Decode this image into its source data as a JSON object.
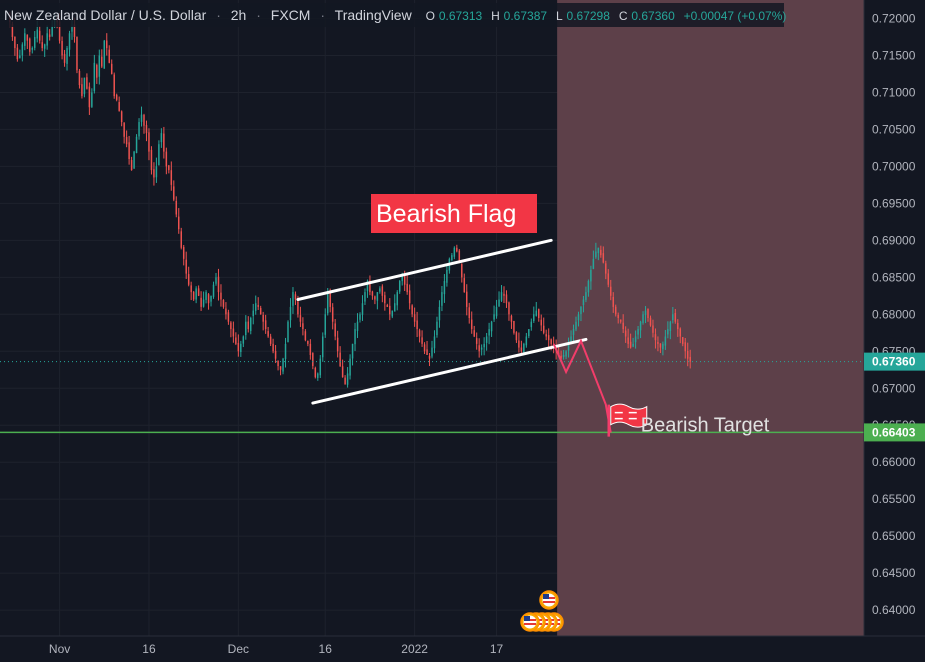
{
  "header": {
    "symbol": "New Zealand Dollar / U.S. Dollar",
    "sep1": "·",
    "interval": "2h",
    "sep2": "·",
    "exchange": "FXCM",
    "sep3": "·",
    "source": "TradingView",
    "o_label": "O",
    "o_value": "0.67313",
    "h_label": "H",
    "h_value": "0.67387",
    "l_label": "L",
    "l_value": "0.67298",
    "c_label": "C",
    "c_value": "0.67360",
    "change": "+0.00047 (+0.07%)"
  },
  "annotations": {
    "flag_label": "Bearish Flag",
    "target_label": "Bearish Target"
  },
  "price_tags": {
    "current": "0.67360",
    "target": "0.66403"
  },
  "colors": {
    "background": "#131722",
    "grid": "#1e222d",
    "up_candle": "#26a69a",
    "down_candle": "#ef5350",
    "target_line": "#4caf50",
    "current_tag": "#26a69a",
    "target_tag": "#4caf50",
    "projection_zone": "#5d4049",
    "flag_box": "#f23645",
    "projection_path": "#f23d6a"
  },
  "chart_data": {
    "type": "candlestick",
    "title": "New Zealand Dollar / U.S. Dollar · 2h · FXCM",
    "ylim": [
      0.6365,
      0.7225
    ],
    "y_ticks": [
      "0.72000",
      "0.71500",
      "0.71000",
      "0.70500",
      "0.70000",
      "0.69500",
      "0.69000",
      "0.68500",
      "0.68000",
      "0.67500",
      "0.67000",
      "0.66500",
      "0.66000",
      "0.65500",
      "0.65000",
      "0.64500",
      "0.64000"
    ],
    "x_ticks": [
      {
        "label": "Nov",
        "index": 20
      },
      {
        "label": "16",
        "index": 56
      },
      {
        "label": "Dec",
        "index": 92
      },
      {
        "label": "16",
        "index": 127
      },
      {
        "label": "2022",
        "index": 163
      },
      {
        "label": "17",
        "index": 196
      }
    ],
    "x_range": [
      -4,
      344
    ],
    "series_close": [
      0.7195,
      0.7175,
      0.716,
      0.7145,
      0.715,
      0.7165,
      0.718,
      0.717,
      0.7155,
      0.716,
      0.7175,
      0.7185,
      0.717,
      0.716,
      0.7165,
      0.718,
      0.7175,
      0.719,
      0.72,
      0.7195,
      0.717,
      0.715,
      0.714,
      0.716,
      0.718,
      0.719,
      0.7175,
      0.713,
      0.711,
      0.7095,
      0.712,
      0.7105,
      0.708,
      0.71,
      0.714,
      0.712,
      0.715,
      0.7135,
      0.717,
      0.716,
      0.714,
      0.7125,
      0.7095,
      0.709,
      0.7075,
      0.706,
      0.704,
      0.703,
      0.701,
      0.6995,
      0.702,
      0.704,
      0.706,
      0.707,
      0.7055,
      0.7045,
      0.702,
      0.6995,
      0.6985,
      0.7,
      0.703,
      0.7045,
      0.702,
      0.7,
      0.6995,
      0.6975,
      0.6955,
      0.6935,
      0.6915,
      0.689,
      0.6875,
      0.6855,
      0.684,
      0.683,
      0.682,
      0.6835,
      0.6825,
      0.681,
      0.682,
      0.683,
      0.6815,
      0.6825,
      0.684,
      0.685,
      0.683,
      0.682,
      0.681,
      0.68,
      0.679,
      0.678,
      0.677,
      0.676,
      0.675,
      0.676,
      0.677,
      0.679,
      0.678,
      0.6795,
      0.6805,
      0.6815,
      0.681,
      0.68,
      0.679,
      0.678,
      0.677,
      0.676,
      0.675,
      0.674,
      0.673,
      0.6725,
      0.674,
      0.676,
      0.679,
      0.681,
      0.683,
      0.682,
      0.68,
      0.679,
      0.678,
      0.6765,
      0.676,
      0.6745,
      0.673,
      0.6715,
      0.672,
      0.674,
      0.677,
      0.68,
      0.683,
      0.681,
      0.679,
      0.677,
      0.675,
      0.673,
      0.6715,
      0.6705,
      0.672,
      0.674,
      0.676,
      0.678,
      0.679,
      0.68,
      0.6815,
      0.683,
      0.6845,
      0.683,
      0.6825,
      0.682,
      0.683,
      0.6835,
      0.6825,
      0.6815,
      0.681,
      0.68,
      0.6805,
      0.6815,
      0.683,
      0.6845,
      0.6855,
      0.684,
      0.683,
      0.6815,
      0.68,
      0.679,
      0.678,
      0.677,
      0.676,
      0.675,
      0.6745,
      0.674,
      0.6755,
      0.677,
      0.679,
      0.681,
      0.683,
      0.6845,
      0.686,
      0.6875,
      0.688,
      0.689,
      0.6885,
      0.687,
      0.685,
      0.683,
      0.681,
      0.6795,
      0.678,
      0.677,
      0.676,
      0.675,
      0.6755,
      0.676,
      0.677,
      0.678,
      0.679,
      0.68,
      0.681,
      0.682,
      0.683,
      0.6825,
      0.6815,
      0.68,
      0.679,
      0.6775,
      0.6765,
      0.6755,
      0.675,
      0.676,
      0.677,
      0.678,
      0.679,
      0.68,
      0.6805,
      0.6795,
      0.6785,
      0.6775,
      0.677,
      0.6765,
      0.676,
      0.6755,
      0.675,
      0.6745,
      0.674,
      0.6745,
      0.675,
      0.676,
      0.677,
      0.678,
      0.679,
      0.68,
      0.681,
      0.682,
      0.683,
      0.6845,
      0.686,
      0.6875,
      0.6885,
      0.689,
      0.688,
      0.687,
      0.6855,
      0.684,
      0.6825,
      0.681,
      0.68,
      0.6795,
      0.679,
      0.678,
      0.677,
      0.676,
      0.6755,
      0.676,
      0.677,
      0.678,
      0.679,
      0.68,
      0.6805,
      0.6795,
      0.6785,
      0.6775,
      0.6765,
      0.676,
      0.6755,
      0.676,
      0.677,
      0.678,
      0.679,
      0.68,
      0.679,
      0.678,
      0.677,
      0.676,
      0.675,
      0.674,
      0.6736
    ],
    "flag_channel": {
      "upper": [
        [
          0.682,
          116
        ],
        [
          0.69,
          218
        ]
      ],
      "lower": [
        [
          0.668,
          122
        ],
        [
          0.6766,
          232
        ]
      ]
    },
    "projection_path": [
      [
        0.676,
        219
      ],
      [
        0.6722,
        224
      ],
      [
        0.6764,
        230
      ],
      [
        0.6678,
        240
      ],
      [
        0.664,
        242
      ]
    ],
    "target_price": 0.66403,
    "current_price": 0.6736,
    "projection_start_index": 220
  }
}
